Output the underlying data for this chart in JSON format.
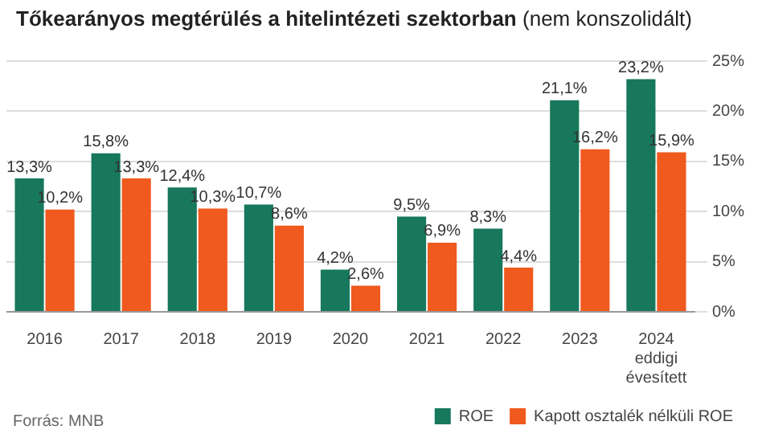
{
  "chart_data": {
    "type": "bar",
    "title": "Tőkearányos megtérülés a hitelintézeti szektorban",
    "subtitle": "(nem konszolidált)",
    "categories": [
      "2016",
      "2017",
      "2018",
      "2019",
      "2020",
      "2021",
      "2022",
      "2023",
      "2024 eddigi évesített"
    ],
    "series": [
      {
        "name": "ROE",
        "color": "#17785c",
        "values": [
          13.3,
          15.8,
          12.4,
          10.7,
          4.2,
          9.5,
          8.3,
          21.1,
          23.2
        ],
        "value_labels": [
          "13,3%",
          "15,8%",
          "12,4%",
          "10,7%",
          "4,2%",
          "9,5%",
          "8,3%",
          "21,1%",
          "23,2%"
        ]
      },
      {
        "name": "Kapott osztalék nélküli ROE",
        "color": "#f05a1e",
        "values": [
          10.2,
          13.3,
          10.3,
          8.6,
          2.6,
          6.9,
          4.4,
          16.2,
          15.9
        ],
        "value_labels": [
          "10,2%",
          "13,3%",
          "10,3%",
          "8,6%",
          "2,6%",
          "6,9%",
          "4,4%",
          "16,2%",
          "15,9%"
        ]
      }
    ],
    "ylim": [
      0,
      25
    ],
    "yticks": [
      {
        "value": 0,
        "label": "0%"
      },
      {
        "value": 5,
        "label": "5%"
      },
      {
        "value": 10,
        "label": "10%"
      },
      {
        "value": 15,
        "label": "15%"
      },
      {
        "value": 20,
        "label": "20%"
      },
      {
        "value": 25,
        "label": "25%"
      }
    ],
    "grid": "y",
    "legend": "bottom right",
    "annotations": [
      "Forrás: MNB"
    ]
  }
}
